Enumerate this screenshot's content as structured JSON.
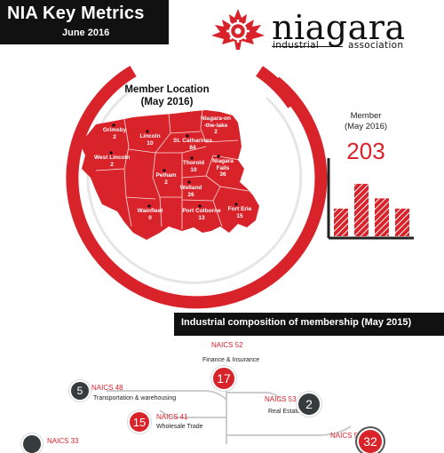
{
  "header": {
    "title": "NIA Key Metrics",
    "subtitle": "June 2016"
  },
  "logo": {
    "word": "niagara",
    "tag_left": "industrial",
    "tag_right": "association"
  },
  "map": {
    "title_line1": "Member  Location",
    "title_line2": "(May 2016)",
    "regions": [
      {
        "name": "Grimsby",
        "value": "2"
      },
      {
        "name": "Lincoln",
        "value": "10"
      },
      {
        "name": "Niagara-on-the-lake",
        "value": "2"
      },
      {
        "name": "St. Catharines",
        "value": "84"
      },
      {
        "name": "West Lincoln",
        "value": "2"
      },
      {
        "name": "Thorold",
        "value": "10"
      },
      {
        "name": "Niagara Falls",
        "value": "36"
      },
      {
        "name": "Pelham",
        "value": "2"
      },
      {
        "name": "Welland",
        "value": "26"
      },
      {
        "name": "Wainfleet",
        "value": "0"
      },
      {
        "name": "Port Colborne",
        "value": "13"
      },
      {
        "name": "Fort Erie",
        "value": "15"
      }
    ]
  },
  "member_chart": {
    "caption_line1": "Member",
    "caption_line2": "(May 2016)",
    "total": "203"
  },
  "chart_data": {
    "type": "bar",
    "title": "",
    "values": [
      0.38,
      0.72,
      0.52,
      0.38
    ],
    "xlabel": "",
    "ylabel": ""
  },
  "industry": {
    "banner": "Industrial composition of membership (May 2015)",
    "items": [
      {
        "code": "NAICS 52",
        "desc": "Finance & Insurance",
        "value": "17"
      },
      {
        "code": "NAICS 48",
        "desc": "Transportation & warehousing",
        "value": "5"
      },
      {
        "code": "NAICS 53",
        "desc": "Real Estate",
        "value": "2"
      },
      {
        "code": "NAICS 41",
        "desc": "Wholesale Trade",
        "value": "15"
      },
      {
        "code": "NAICS 33",
        "desc": "",
        "value": ""
      },
      {
        "code": "NAICS 54",
        "desc": "",
        "value": "32"
      }
    ]
  },
  "colors": {
    "accent": "#d9232b",
    "dark": "#111111",
    "bubble_dark": "#363b3e"
  }
}
